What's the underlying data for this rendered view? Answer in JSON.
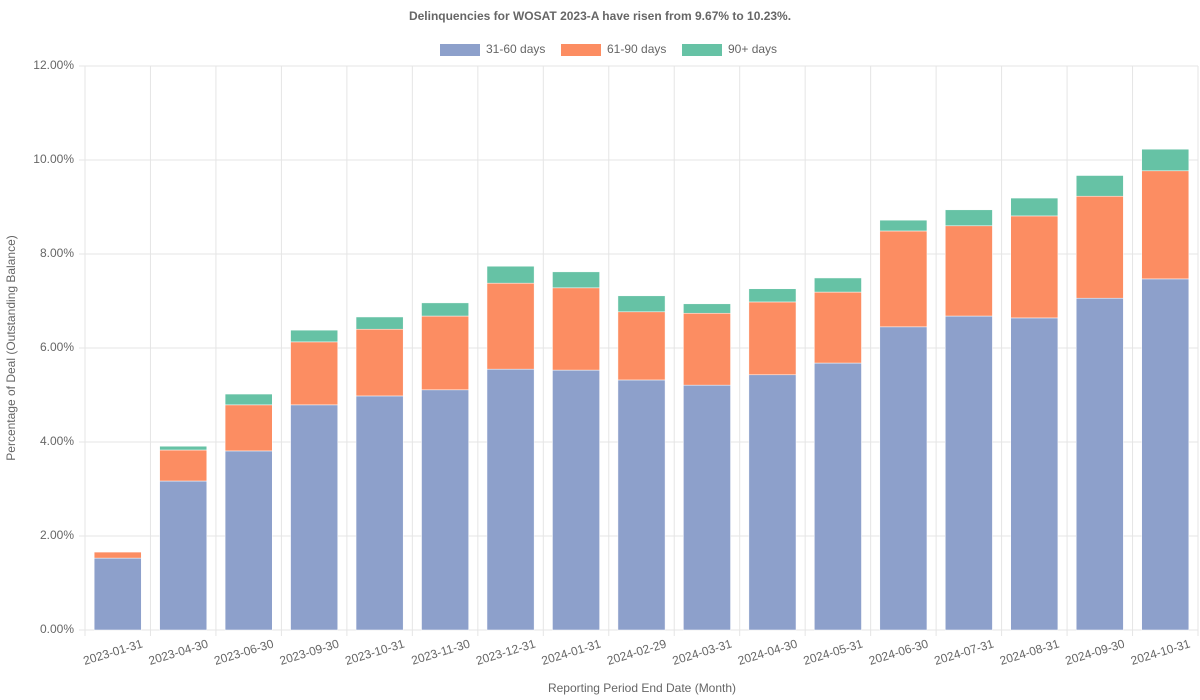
{
  "chart_data": {
    "type": "stacked_bar",
    "title": "Delinquencies for WOSAT 2023-A have risen from 9.67% to 10.23%.",
    "x_label": "Reporting Period End Date (Month)",
    "y_label": "Percentage of Deal (Outstanding Balance)",
    "categories": [
      "2023-01-31",
      "2023-04-30",
      "2023-06-30",
      "2023-09-30",
      "2023-10-31",
      "2023-11-30",
      "2023-12-31",
      "2024-01-31",
      "2024-02-29",
      "2024-03-31",
      "2024-04-30",
      "2024-05-31",
      "2024-06-30",
      "2024-07-31",
      "2024-08-31",
      "2024-09-30",
      "2024-10-31"
    ],
    "series": [
      {
        "name": "31-60 days",
        "color": "#8da0cb",
        "values": [
          1.53,
          3.17,
          3.81,
          4.79,
          4.98,
          5.11,
          5.55,
          5.53,
          5.32,
          5.21,
          5.43,
          5.68,
          6.45,
          6.68,
          6.64,
          7.06,
          7.47
        ]
      },
      {
        "name": "61-90 days",
        "color": "#fc8d62",
        "values": [
          0.13,
          0.66,
          0.98,
          1.34,
          1.42,
          1.57,
          1.83,
          1.75,
          1.45,
          1.53,
          1.55,
          1.51,
          2.04,
          1.92,
          2.17,
          2.17,
          2.3
        ]
      },
      {
        "name": "90+ days",
        "color": "#66c2a5",
        "values": [
          0.01,
          0.08,
          0.23,
          0.25,
          0.26,
          0.28,
          0.36,
          0.34,
          0.34,
          0.2,
          0.28,
          0.3,
          0.23,
          0.34,
          0.38,
          0.44,
          0.46
        ]
      }
    ],
    "ylim": [
      0,
      12
    ],
    "yticks": [
      {
        "value": 0,
        "label": "0.00%"
      },
      {
        "value": 2,
        "label": "2.00%"
      },
      {
        "value": 4,
        "label": "4.00%"
      },
      {
        "value": 6,
        "label": "6.00%"
      },
      {
        "value": 8,
        "label": "8.00%"
      },
      {
        "value": 10,
        "label": "10.00%"
      },
      {
        "value": 12,
        "label": "12.00%"
      }
    ],
    "grid": true,
    "legend": "top"
  }
}
